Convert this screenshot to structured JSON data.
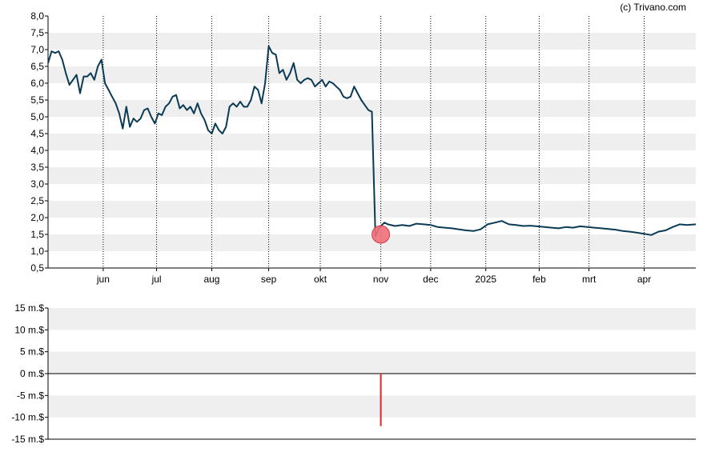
{
  "credit": "(c) Trivano.com",
  "colors": {
    "price_line": "#0b3a55",
    "band": "#efefef",
    "marker_fill": "#f06f7a",
    "marker_stroke": "#d23b48",
    "volume_bar": "#e0242f",
    "axis": "#000000"
  },
  "chart_data": [
    {
      "type": "line",
      "title": "",
      "xlabel": "",
      "ylabel": "",
      "ylim": [
        0.5,
        8.0
      ],
      "y_ticks": [
        "0,5",
        "1,0",
        "1,5",
        "2,0",
        "2,5",
        "3,0",
        "3,5",
        "4,0",
        "4,5",
        "5,0",
        "5,5",
        "6,0",
        "6,5",
        "7,0",
        "7,5",
        "8,0"
      ],
      "y_tick_values": [
        0.5,
        1.0,
        1.5,
        2.0,
        2.5,
        3.0,
        3.5,
        4.0,
        4.5,
        5.0,
        5.5,
        6.0,
        6.5,
        7.0,
        7.5,
        8.0
      ],
      "x_range": [
        "2024-05-01",
        "2025-04-30"
      ],
      "x_ticks": [
        {
          "label": "jun",
          "date": "2024-06-01"
        },
        {
          "label": "jul",
          "date": "2024-07-01"
        },
        {
          "label": "aug",
          "date": "2024-08-01"
        },
        {
          "label": "sep",
          "date": "2024-09-02"
        },
        {
          "label": "okt",
          "date": "2024-10-01"
        },
        {
          "label": "nov",
          "date": "2024-11-04"
        },
        {
          "label": "dec",
          "date": "2024-12-02"
        },
        {
          "label": "2025",
          "date": "2025-01-02"
        },
        {
          "label": "feb",
          "date": "2025-02-01"
        },
        {
          "label": "mrt",
          "date": "2025-03-01"
        },
        {
          "label": "apr",
          "date": "2025-04-01"
        }
      ],
      "grid": "vertical dotted lines at month ticks, alternating horizontal bands",
      "series": [
        {
          "x": [
            "2024-05-01",
            "2024-05-03",
            "2024-05-05",
            "2024-05-07",
            "2024-05-09",
            "2024-05-11",
            "2024-05-13",
            "2024-05-15",
            "2024-05-17",
            "2024-05-19",
            "2024-05-21",
            "2024-05-23",
            "2024-05-25",
            "2024-05-27",
            "2024-05-29",
            "2024-05-31",
            "2024-06-02",
            "2024-06-04",
            "2024-06-06",
            "2024-06-08",
            "2024-06-10",
            "2024-06-12",
            "2024-06-14",
            "2024-06-16",
            "2024-06-18",
            "2024-06-20",
            "2024-06-22",
            "2024-06-24",
            "2024-06-26",
            "2024-06-28",
            "2024-06-30",
            "2024-07-02",
            "2024-07-04",
            "2024-07-06",
            "2024-07-08",
            "2024-07-10",
            "2024-07-12",
            "2024-07-14",
            "2024-07-16",
            "2024-07-18",
            "2024-07-20",
            "2024-07-22",
            "2024-07-24",
            "2024-07-26",
            "2024-07-28",
            "2024-07-30",
            "2024-08-01",
            "2024-08-03",
            "2024-08-05",
            "2024-08-07",
            "2024-08-09",
            "2024-08-11",
            "2024-08-13",
            "2024-08-15",
            "2024-08-17",
            "2024-08-19",
            "2024-08-21",
            "2024-08-23",
            "2024-08-25",
            "2024-08-27",
            "2024-08-29",
            "2024-08-31",
            "2024-09-02",
            "2024-09-04",
            "2024-09-06",
            "2024-09-08",
            "2024-09-10",
            "2024-09-12",
            "2024-09-14",
            "2024-09-16",
            "2024-09-18",
            "2024-09-20",
            "2024-09-22",
            "2024-09-24",
            "2024-09-26",
            "2024-09-28",
            "2024-09-30",
            "2024-10-02",
            "2024-10-04",
            "2024-10-06",
            "2024-10-08",
            "2024-10-10",
            "2024-10-12",
            "2024-10-14",
            "2024-10-16",
            "2024-10-18",
            "2024-10-20",
            "2024-10-22",
            "2024-10-24",
            "2024-10-26",
            "2024-10-28",
            "2024-10-30",
            "2024-11-01",
            "2024-11-03",
            "2024-11-04",
            "2024-11-06",
            "2024-11-08",
            "2024-11-12",
            "2024-11-16",
            "2024-11-20",
            "2024-11-24",
            "2024-11-28",
            "2024-12-02",
            "2024-12-06",
            "2024-12-10",
            "2024-12-14",
            "2024-12-18",
            "2024-12-22",
            "2024-12-26",
            "2024-12-30",
            "2025-01-03",
            "2025-01-07",
            "2025-01-11",
            "2025-01-15",
            "2025-01-19",
            "2025-01-23",
            "2025-01-27",
            "2025-01-31",
            "2025-02-04",
            "2025-02-08",
            "2025-02-12",
            "2025-02-16",
            "2025-02-20",
            "2025-02-24",
            "2025-02-28",
            "2025-03-04",
            "2025-03-08",
            "2025-03-12",
            "2025-03-16",
            "2025-03-20",
            "2025-03-24",
            "2025-03-28",
            "2025-04-01",
            "2025-04-05",
            "2025-04-09",
            "2025-04-13",
            "2025-04-17",
            "2025-04-21",
            "2025-04-25",
            "2025-04-30"
          ],
          "y": [
            6.6,
            6.95,
            6.9,
            6.95,
            6.7,
            6.3,
            5.95,
            6.1,
            6.25,
            5.7,
            6.2,
            6.2,
            6.3,
            6.1,
            6.5,
            6.7,
            6.0,
            5.8,
            5.6,
            5.4,
            5.1,
            4.65,
            5.3,
            4.7,
            4.95,
            4.85,
            4.95,
            5.2,
            5.25,
            5.0,
            4.8,
            5.1,
            5.05,
            5.3,
            5.4,
            5.6,
            5.65,
            5.25,
            5.35,
            5.2,
            5.3,
            5.1,
            5.4,
            5.1,
            4.9,
            4.6,
            4.5,
            4.8,
            4.6,
            4.5,
            4.7,
            5.3,
            5.4,
            5.3,
            5.45,
            5.3,
            5.3,
            5.5,
            5.9,
            5.8,
            5.4,
            6.0,
            7.1,
            6.9,
            6.85,
            6.3,
            6.4,
            6.1,
            6.3,
            6.6,
            6.1,
            6.0,
            6.1,
            6.15,
            6.1,
            5.9,
            6.0,
            6.1,
            5.9,
            6.05,
            6.0,
            5.9,
            5.8,
            5.6,
            5.55,
            5.6,
            5.9,
            5.7,
            5.5,
            5.35,
            5.2,
            5.15,
            1.45,
            1.7,
            1.75,
            1.85,
            1.8,
            1.75,
            1.78,
            1.75,
            1.82,
            1.8,
            1.78,
            1.72,
            1.7,
            1.68,
            1.65,
            1.62,
            1.6,
            1.65,
            1.8,
            1.85,
            1.9,
            1.8,
            1.78,
            1.75,
            1.76,
            1.74,
            1.72,
            1.7,
            1.68,
            1.72,
            1.7,
            1.74,
            1.72,
            1.7,
            1.68,
            1.66,
            1.64,
            1.6,
            1.58,
            1.55,
            1.52,
            1.48,
            1.58,
            1.62,
            1.72,
            1.8,
            1.78,
            1.8
          ]
        }
      ],
      "marker": {
        "date": "2024-11-04",
        "value": 1.5
      }
    },
    {
      "type": "bar",
      "title": "",
      "xlabel": "",
      "ylabel": "",
      "ylim": [
        -15,
        15
      ],
      "y_ticks": [
        "15 m.$",
        "10 m.$",
        "5 m.$",
        "0 m.$",
        "-5 m.$",
        "-10 m.$",
        "-15 m.$"
      ],
      "y_tick_values": [
        15,
        10,
        5,
        0,
        -5,
        -10,
        -15
      ],
      "series": [
        {
          "x": [
            "2024-11-04"
          ],
          "values": [
            -12
          ]
        }
      ]
    }
  ]
}
